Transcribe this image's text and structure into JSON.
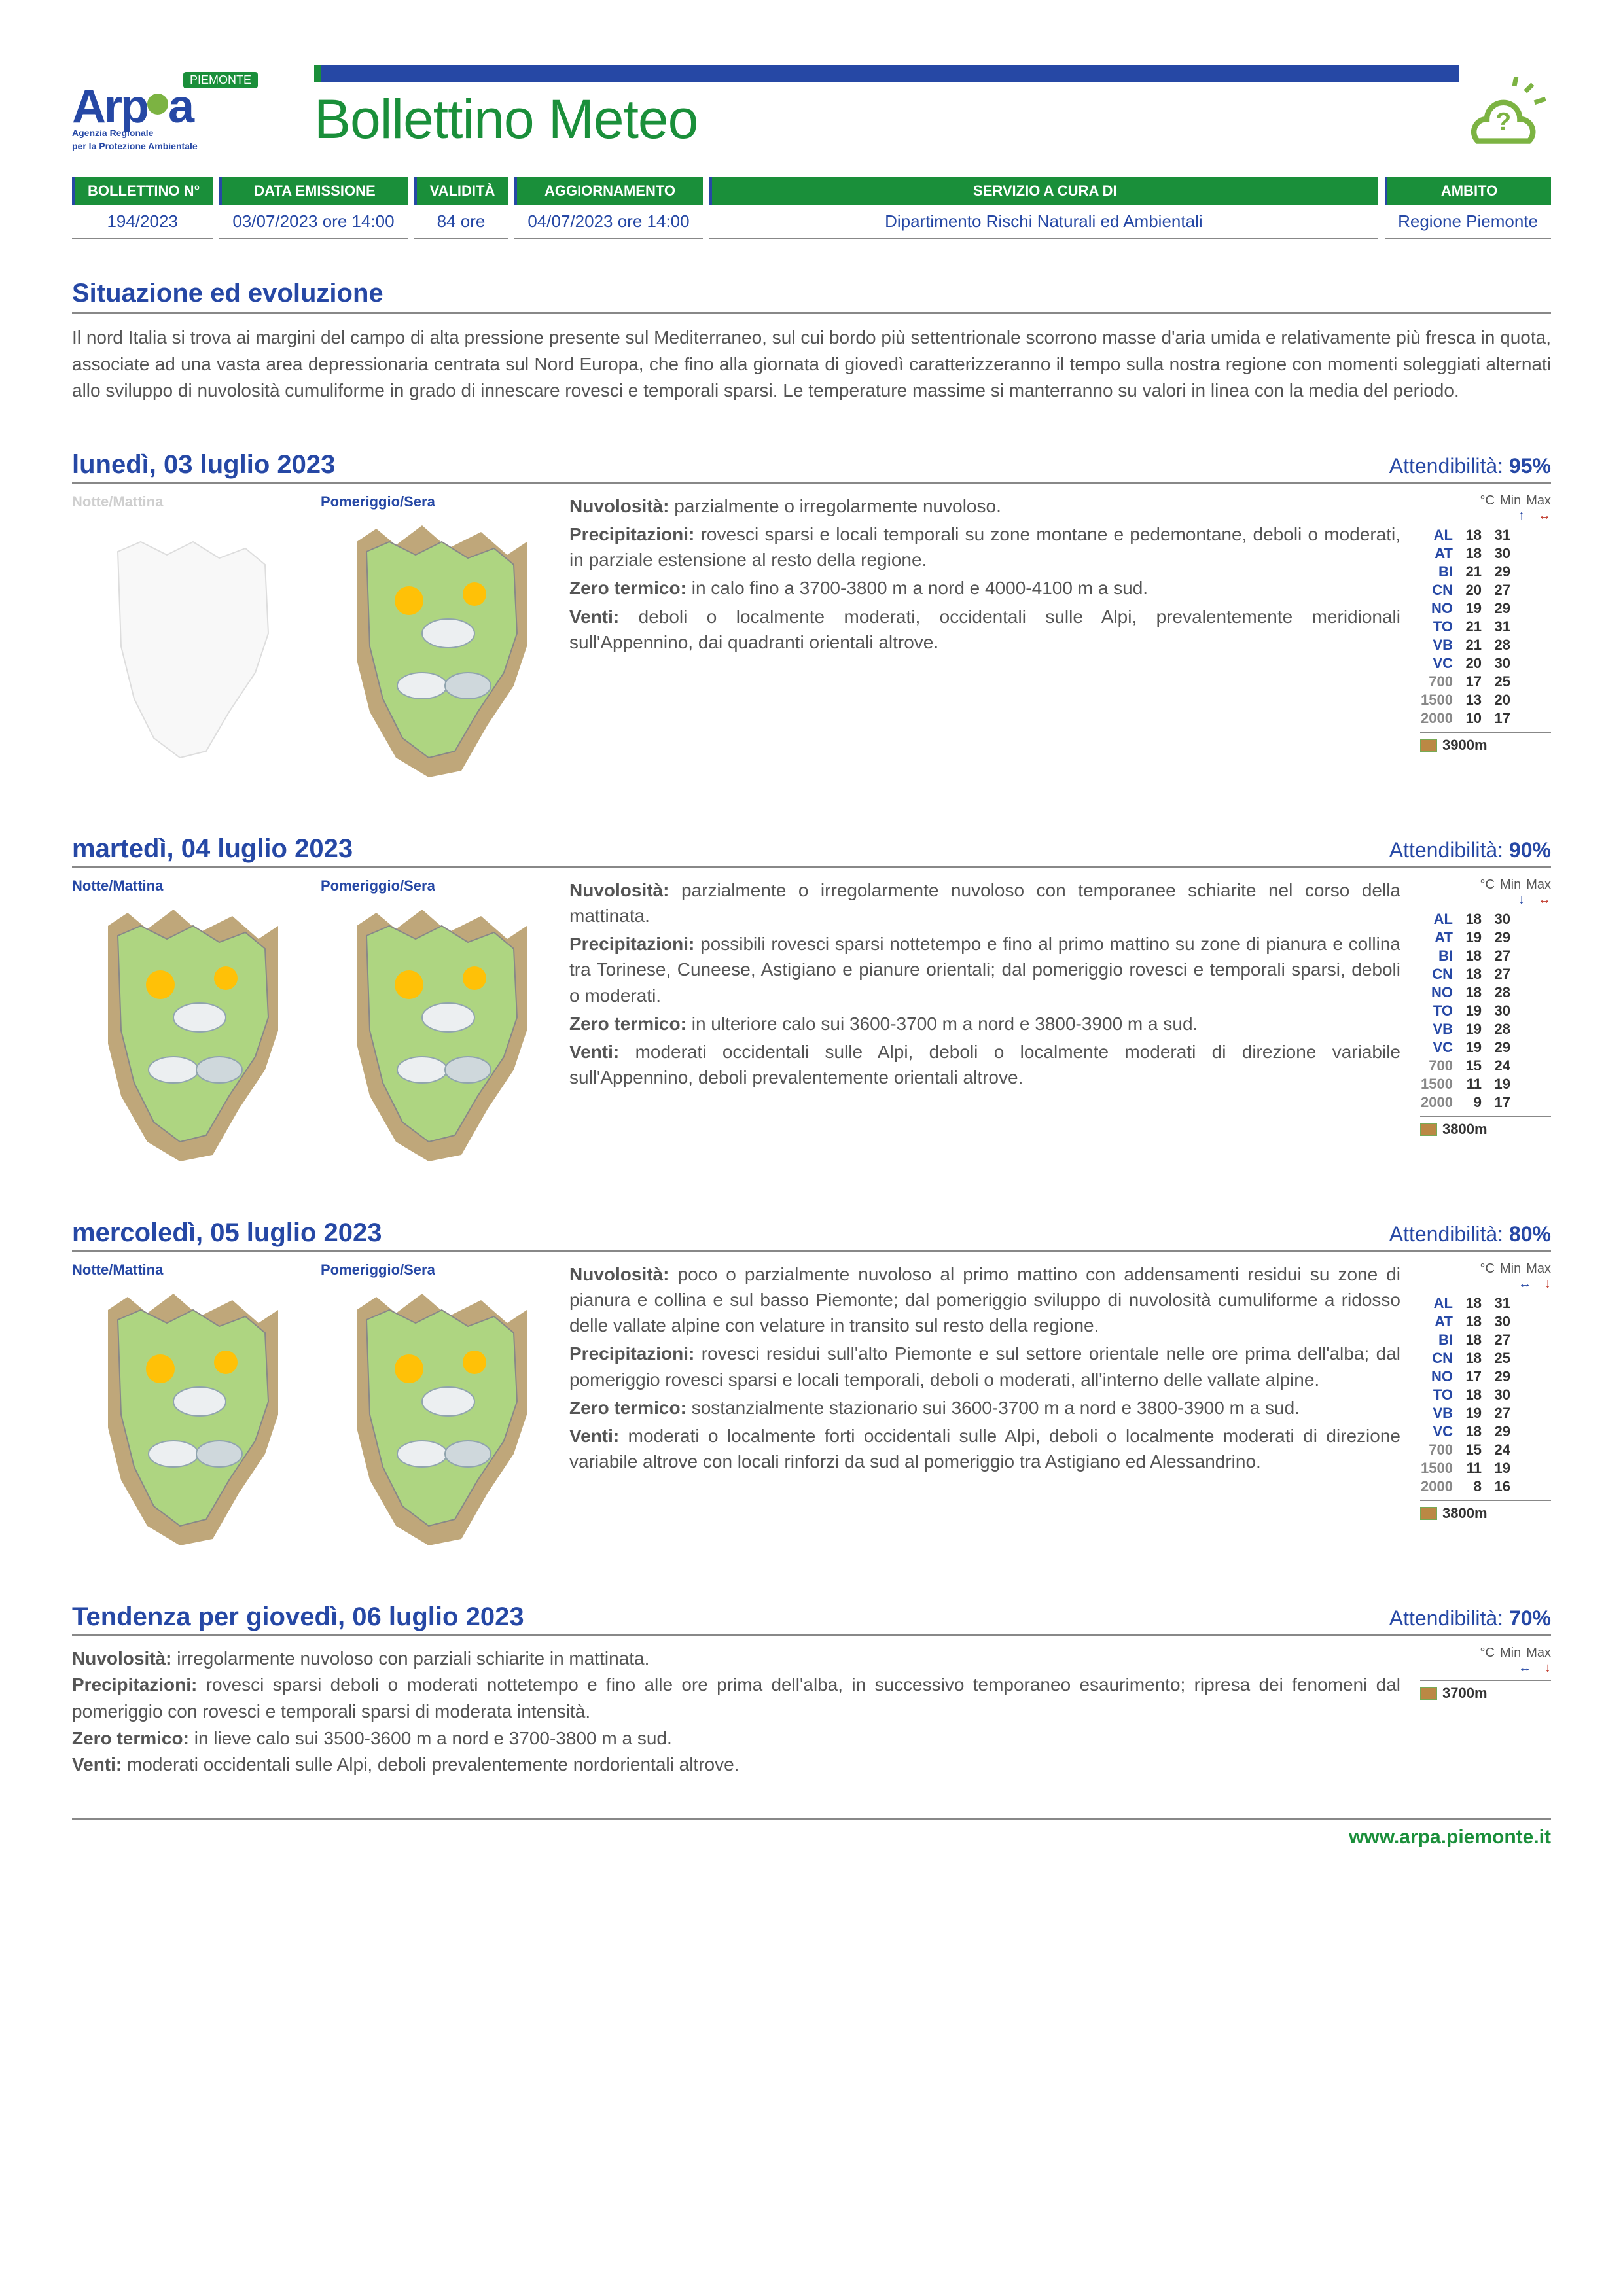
{
  "header": {
    "region_tag": "PIEMONTE",
    "logo_main": "Arpa",
    "logo_sub1": "Agenzia Regionale",
    "logo_sub2": "per la Protezione Ambientale",
    "title": "Bollettino Meteo"
  },
  "meta": {
    "labels": {
      "number": "BOLLETTINO N°",
      "issued": "DATA EMISSIONE",
      "validity": "VALIDITÀ",
      "update": "AGGIORNAMENTO",
      "service": "SERVIZIO A CURA DI",
      "scope": "AMBITO"
    },
    "values": {
      "number": "194/2023",
      "issued": "03/07/2023 ore 14:00",
      "validity": "84 ore",
      "update": "04/07/2023 ore 14:00",
      "service": "Dipartimento Rischi Naturali ed Ambientali",
      "scope": "Regione Piemonte"
    }
  },
  "situation": {
    "title": "Situazione ed evoluzione",
    "text": "Il nord Italia si trova ai margini del campo di alta pressione presente sul Mediterraneo, sul cui bordo più settentrionale scorrono masse d'aria umida e relativamente più fresca in quota, associate ad una vasta area depressionaria centrata sul Nord Europa, che fino alla giornata di giovedì caratterizzeranno il tempo sulla nostra regione con momenti soleggiati alternati allo sviluppo di nuvolosità cumuliforme in grado di innescare rovesci e temporali sparsi. Le temperature massime si manterranno su valori in linea con la media del periodo."
  },
  "map_labels": {
    "morning": "Notte/Mattina",
    "evening": "Pomeriggio/Sera"
  },
  "temp_header": {
    "unit": "°C",
    "min": "Min",
    "max": "Max"
  },
  "days": [
    {
      "title": "lunedì, 03 luglio 2023",
      "reliability_label": "Attendibilità:",
      "reliability": "95%",
      "morning_faded": true,
      "arrows": {
        "min": "↑",
        "max": "↔",
        "min_color": "#2648a5",
        "max_color": "#c0392b"
      },
      "zero": "3900m",
      "temps": [
        {
          "code": "AL",
          "min": "18",
          "max": "31",
          "gray": false
        },
        {
          "code": "AT",
          "min": "18",
          "max": "30",
          "gray": false
        },
        {
          "code": "BI",
          "min": "21",
          "max": "29",
          "gray": false
        },
        {
          "code": "CN",
          "min": "20",
          "max": "27",
          "gray": false
        },
        {
          "code": "NO",
          "min": "19",
          "max": "29",
          "gray": false
        },
        {
          "code": "TO",
          "min": "21",
          "max": "31",
          "gray": false
        },
        {
          "code": "VB",
          "min": "21",
          "max": "28",
          "gray": false
        },
        {
          "code": "VC",
          "min": "20",
          "max": "30",
          "gray": false
        },
        {
          "code": "700",
          "min": "17",
          "max": "25",
          "gray": true
        },
        {
          "code": "1500",
          "min": "13",
          "max": "20",
          "gray": true
        },
        {
          "code": "2000",
          "min": "10",
          "max": "17",
          "gray": true
        }
      ],
      "text": [
        {
          "label": "Nuvolosità:",
          "body": "parzialmente o irregolarmente nuvoloso."
        },
        {
          "label": "Precipitazioni:",
          "body": "rovesci sparsi e locali temporali su zone montane e pedemontane, deboli o moderati, in parziale estensione al resto della regione."
        },
        {
          "label": "Zero termico:",
          "body": "in calo fino a 3700-3800 m a nord e 4000-4100 m a sud."
        },
        {
          "label": "Venti:",
          "body": "deboli o localmente moderati, occidentali sulle Alpi, prevalentemente meridionali sull'Appennino, dai quadranti orientali altrove."
        }
      ]
    },
    {
      "title": "martedì, 04 luglio 2023",
      "reliability_label": "Attendibilità:",
      "reliability": "90%",
      "morning_faded": false,
      "arrows": {
        "min": "↓",
        "max": "↔",
        "min_color": "#2648a5",
        "max_color": "#c0392b"
      },
      "zero": "3800m",
      "temps": [
        {
          "code": "AL",
          "min": "18",
          "max": "30",
          "gray": false
        },
        {
          "code": "AT",
          "min": "19",
          "max": "29",
          "gray": false
        },
        {
          "code": "BI",
          "min": "18",
          "max": "27",
          "gray": false
        },
        {
          "code": "CN",
          "min": "18",
          "max": "27",
          "gray": false
        },
        {
          "code": "NO",
          "min": "18",
          "max": "28",
          "gray": false
        },
        {
          "code": "TO",
          "min": "19",
          "max": "30",
          "gray": false
        },
        {
          "code": "VB",
          "min": "19",
          "max": "28",
          "gray": false
        },
        {
          "code": "VC",
          "min": "19",
          "max": "29",
          "gray": false
        },
        {
          "code": "700",
          "min": "15",
          "max": "24",
          "gray": true
        },
        {
          "code": "1500",
          "min": "11",
          "max": "19",
          "gray": true
        },
        {
          "code": "2000",
          "min": "9",
          "max": "17",
          "gray": true
        }
      ],
      "text": [
        {
          "label": "Nuvolosità:",
          "body": "parzialmente o irregolarmente nuvoloso con temporanee schiarite nel corso della mattinata."
        },
        {
          "label": "Precipitazioni:",
          "body": "possibili rovesci sparsi nottetempo e fino al primo mattino su zone di pianura e collina tra Torinese, Cuneese, Astigiano e pianure orientali; dal pomeriggio rovesci e temporali sparsi, deboli o moderati."
        },
        {
          "label": "Zero termico:",
          "body": "in ulteriore calo sui 3600-3700 m a nord e 3800-3900 m a sud."
        },
        {
          "label": "Venti:",
          "body": "moderati occidentali sulle Alpi, deboli o localmente moderati di direzione variabile sull'Appennino, deboli prevalentemente orientali altrove."
        }
      ]
    },
    {
      "title": "mercoledì, 05 luglio 2023",
      "reliability_label": "Attendibilità:",
      "reliability": "80%",
      "morning_faded": false,
      "arrows": {
        "min": "↔",
        "max": "↓",
        "min_color": "#2648a5",
        "max_color": "#c0392b"
      },
      "zero": "3800m",
      "temps": [
        {
          "code": "AL",
          "min": "18",
          "max": "31",
          "gray": false
        },
        {
          "code": "AT",
          "min": "18",
          "max": "30",
          "gray": false
        },
        {
          "code": "BI",
          "min": "18",
          "max": "27",
          "gray": false
        },
        {
          "code": "CN",
          "min": "18",
          "max": "25",
          "gray": false
        },
        {
          "code": "NO",
          "min": "17",
          "max": "29",
          "gray": false
        },
        {
          "code": "TO",
          "min": "18",
          "max": "30",
          "gray": false
        },
        {
          "code": "VB",
          "min": "19",
          "max": "27",
          "gray": false
        },
        {
          "code": "VC",
          "min": "18",
          "max": "29",
          "gray": false
        },
        {
          "code": "700",
          "min": "15",
          "max": "24",
          "gray": true
        },
        {
          "code": "1500",
          "min": "11",
          "max": "19",
          "gray": true
        },
        {
          "code": "2000",
          "min": "8",
          "max": "16",
          "gray": true
        }
      ],
      "text": [
        {
          "label": "Nuvolosità:",
          "body": "poco o parzialmente nuvoloso al primo mattino con addensamenti residui su zone di pianura e collina e sul basso Piemonte; dal pomeriggio sviluppo di nuvolosità cumuliforme a ridosso delle vallate alpine con velature in transito sul resto della regione."
        },
        {
          "label": "Precipitazioni:",
          "body": "rovesci residui sull'alto Piemonte e sul settore orientale nelle ore prima dell'alba; dal pomeriggio rovesci sparsi e locali temporali, deboli o moderati, all'interno delle vallate alpine."
        },
        {
          "label": "Zero termico:",
          "body": "sostanzialmente stazionario sui 3600-3700 m a nord e 3800-3900 m a sud."
        },
        {
          "label": "Venti:",
          "body": "moderati o localmente forti occidentali sulle Alpi, deboli o localmente moderati di direzione variabile altrove con locali rinforzi da sud al pomeriggio tra Astigiano ed Alessandrino."
        }
      ]
    }
  ],
  "trend": {
    "title": "Tendenza per giovedì, 06 luglio 2023",
    "reliability_label": "Attendibilità:",
    "reliability": "70%",
    "arrows": {
      "min": "↔",
      "max": "↓"
    },
    "zero": "3700m",
    "text": [
      {
        "label": "Nuvolosità:",
        "body": "irregolarmente nuvoloso con parziali schiarite in mattinata."
      },
      {
        "label": "Precipitazioni:",
        "body": "rovesci sparsi deboli o moderati nottetempo e fino alle ore prima dell'alba, in successivo temporaneo esaurimento; ripresa dei fenomeni dal pomeriggio con rovesci e temporali sparsi di moderata intensità."
      },
      {
        "label": "Zero termico:",
        "body": "in lieve calo sui 3500-3600 m a nord e 3700-3800 m a sud."
      },
      {
        "label": "Venti:",
        "body": "moderati occidentali sulle Alpi, deboli prevalentemente nordorientali altrove."
      }
    ]
  },
  "footer": {
    "url": "www.arpa.piemonte.it"
  },
  "colors": {
    "green": "#1a8f3a",
    "blue": "#2648a5",
    "light_green": "#aed581",
    "text_gray": "#555555",
    "rule_gray": "#888888"
  }
}
